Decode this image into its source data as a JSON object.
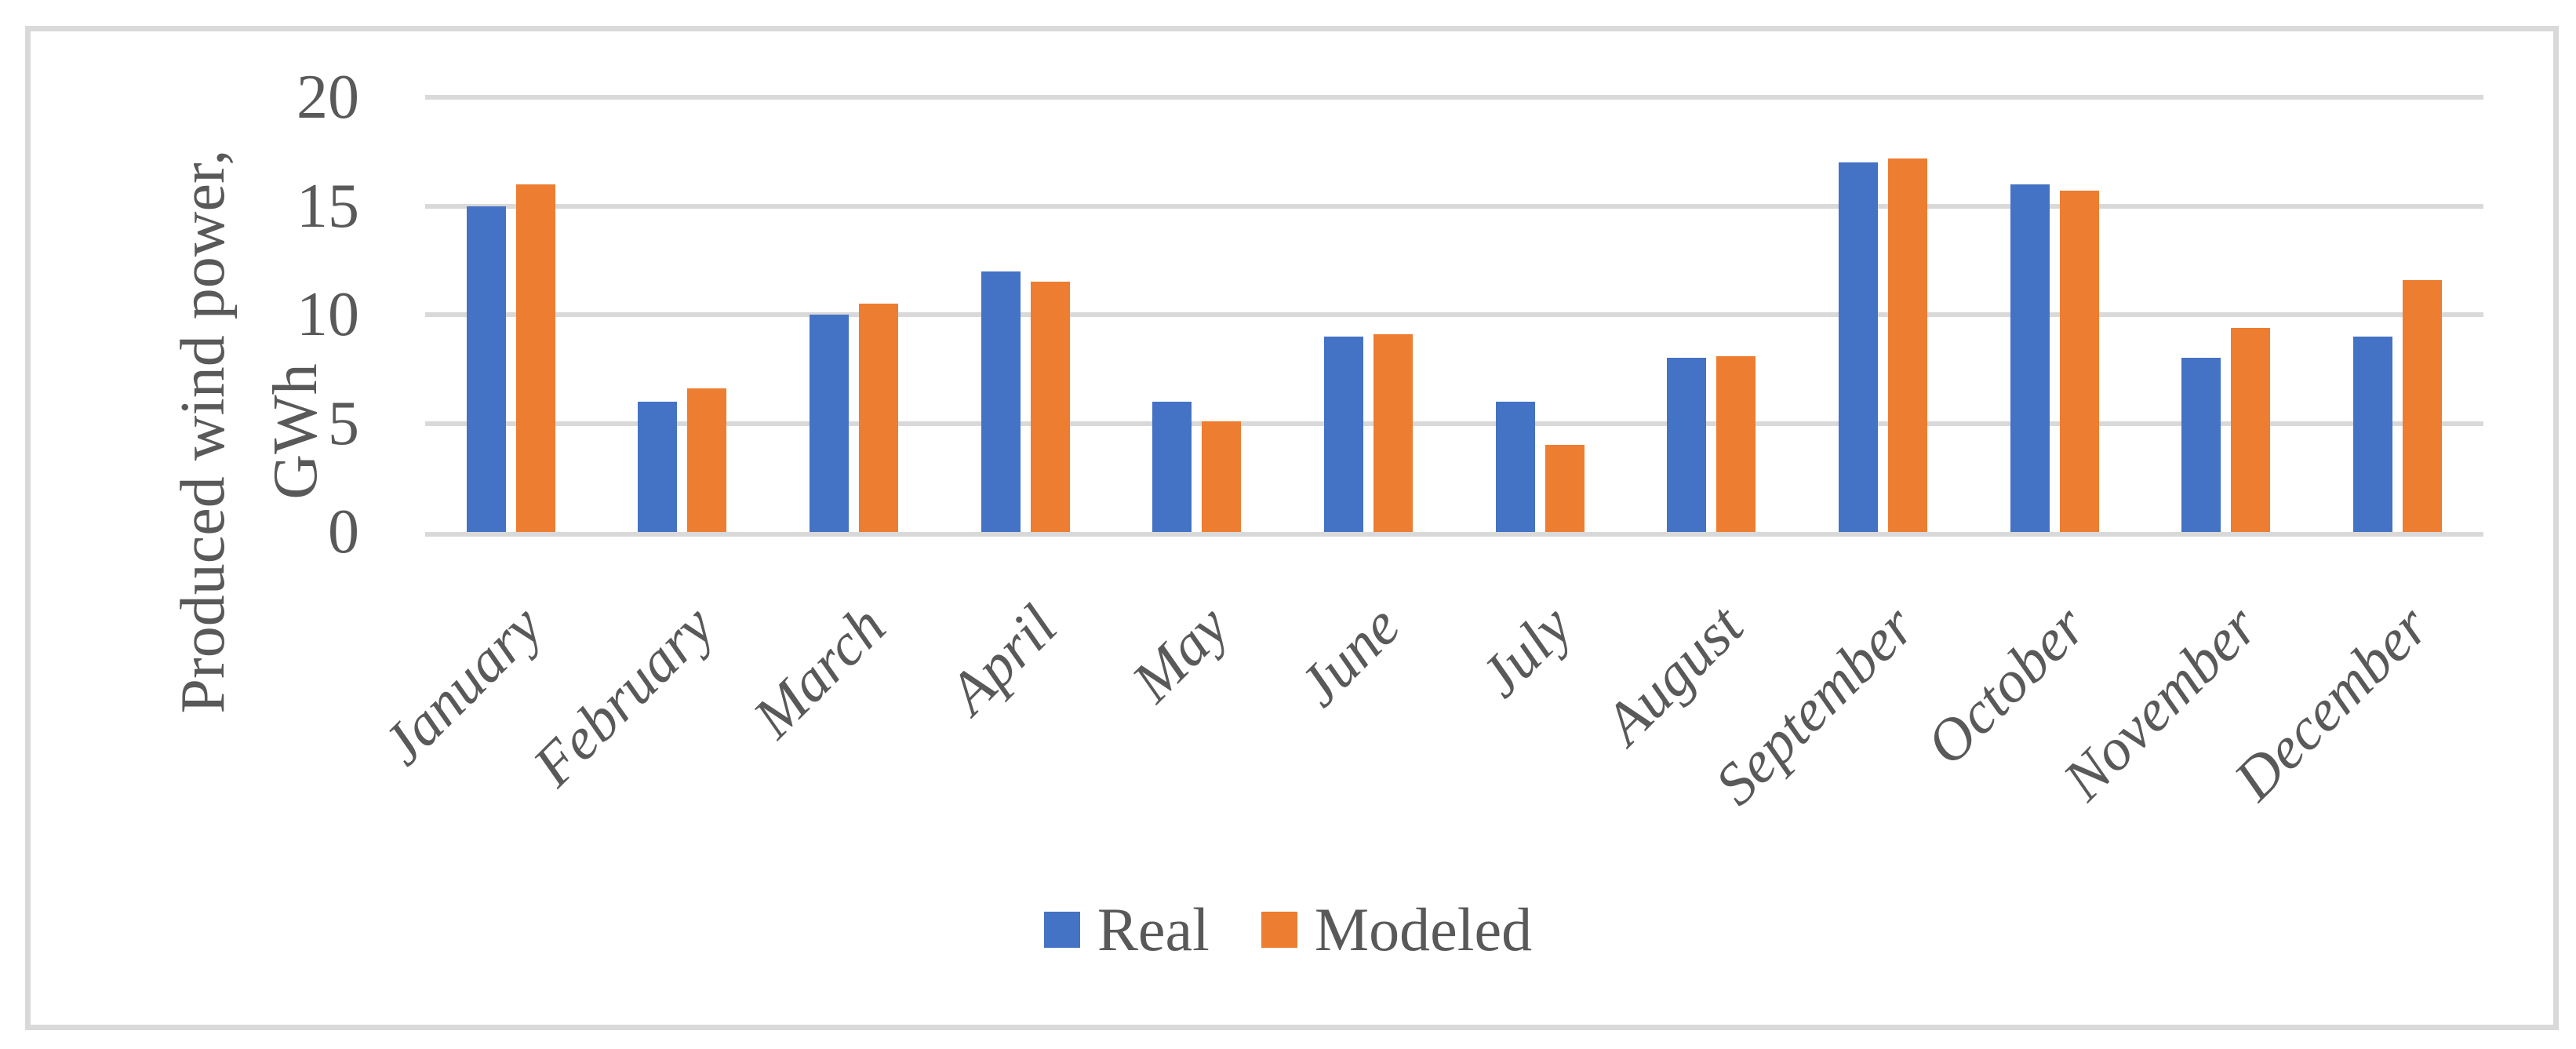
{
  "figure": {
    "background": "#FFFFFF",
    "border_color": "#D9D9D9",
    "text_color": "#595959",
    "gridline_color": "#D9D9D9"
  },
  "chart_data": {
    "type": "bar",
    "title": "",
    "xlabel": "",
    "ylabel": "Produced wind power, GWh",
    "ylabel_lines": [
      "Produced wind power,",
      "GWh"
    ],
    "categories": [
      "January",
      "February",
      "March",
      "April",
      "May",
      "June",
      "July",
      "August",
      "September",
      "October",
      "November",
      "December"
    ],
    "series": [
      {
        "name": "Real",
        "color": "#4472C4",
        "values": [
          15,
          6,
          10,
          12,
          6,
          9,
          6,
          8,
          17,
          16,
          8,
          9
        ]
      },
      {
        "name": "Modeled",
        "color": "#ED7D31",
        "values": [
          16,
          6.6,
          10.5,
          11.5,
          5.1,
          9.1,
          4,
          8.1,
          17.2,
          15.7,
          9.4,
          11.6
        ]
      }
    ],
    "ylim": [
      0,
      20
    ],
    "yticks": [
      0,
      5,
      10,
      15,
      20
    ],
    "grid": true,
    "legend_position": "bottom",
    "category_label_rotation_deg": -45,
    "category_label_style": "italic"
  }
}
